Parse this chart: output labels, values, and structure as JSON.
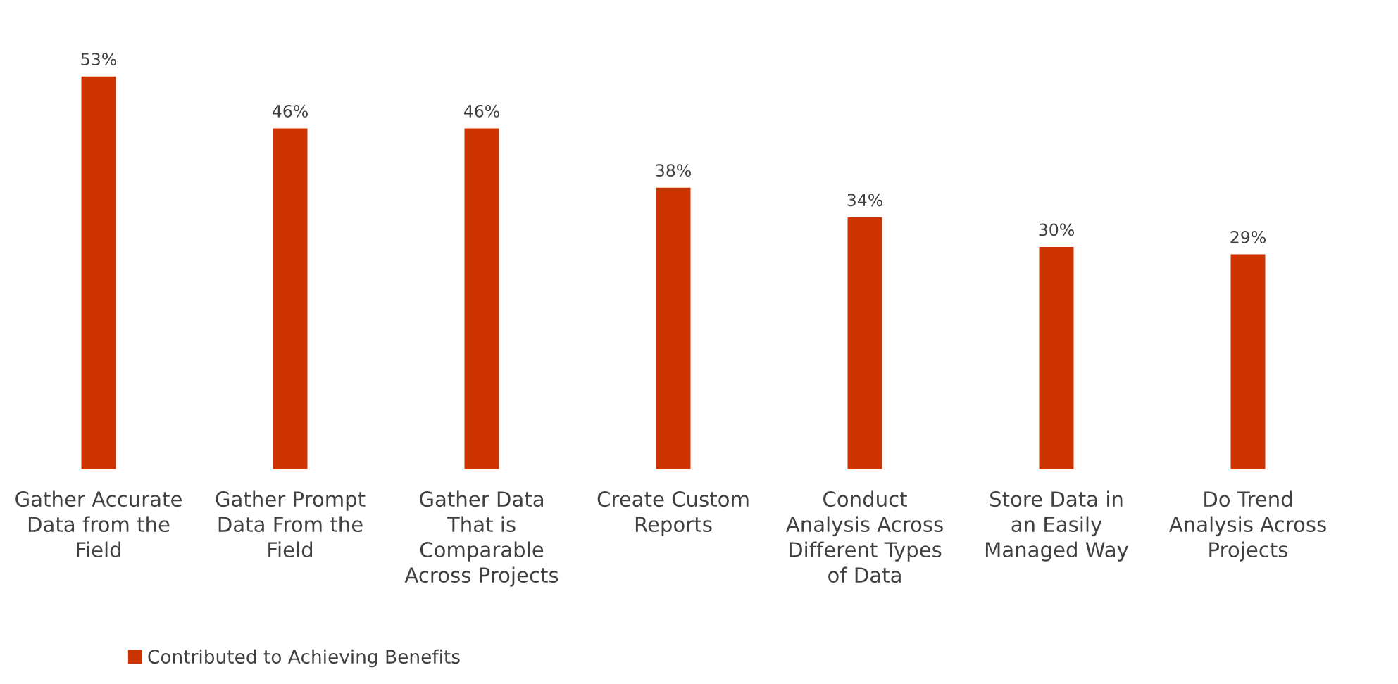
{
  "chart_data": {
    "type": "bar",
    "categories": [
      "Gather Accurate Data from the Field",
      "Gather Prompt Data From the Field",
      "Gather Data That is Comparable Across Projects",
      "Create Custom Reports",
      "Conduct Analysis Across Different Types of Data",
      "Store Data in an Easily Managed Way",
      "Do Trend Analysis Across Projects"
    ],
    "series": [
      {
        "name": "Contributed to Achieving Benefits",
        "color": "#cc3300",
        "values": [
          53,
          46,
          46,
          38,
          34,
          30,
          29
        ],
        "value_labels": [
          "53%",
          "46%",
          "46%",
          "38%",
          "34%",
          "30%",
          "29%"
        ]
      }
    ],
    "legend": "bottom left",
    "grid": false
  }
}
